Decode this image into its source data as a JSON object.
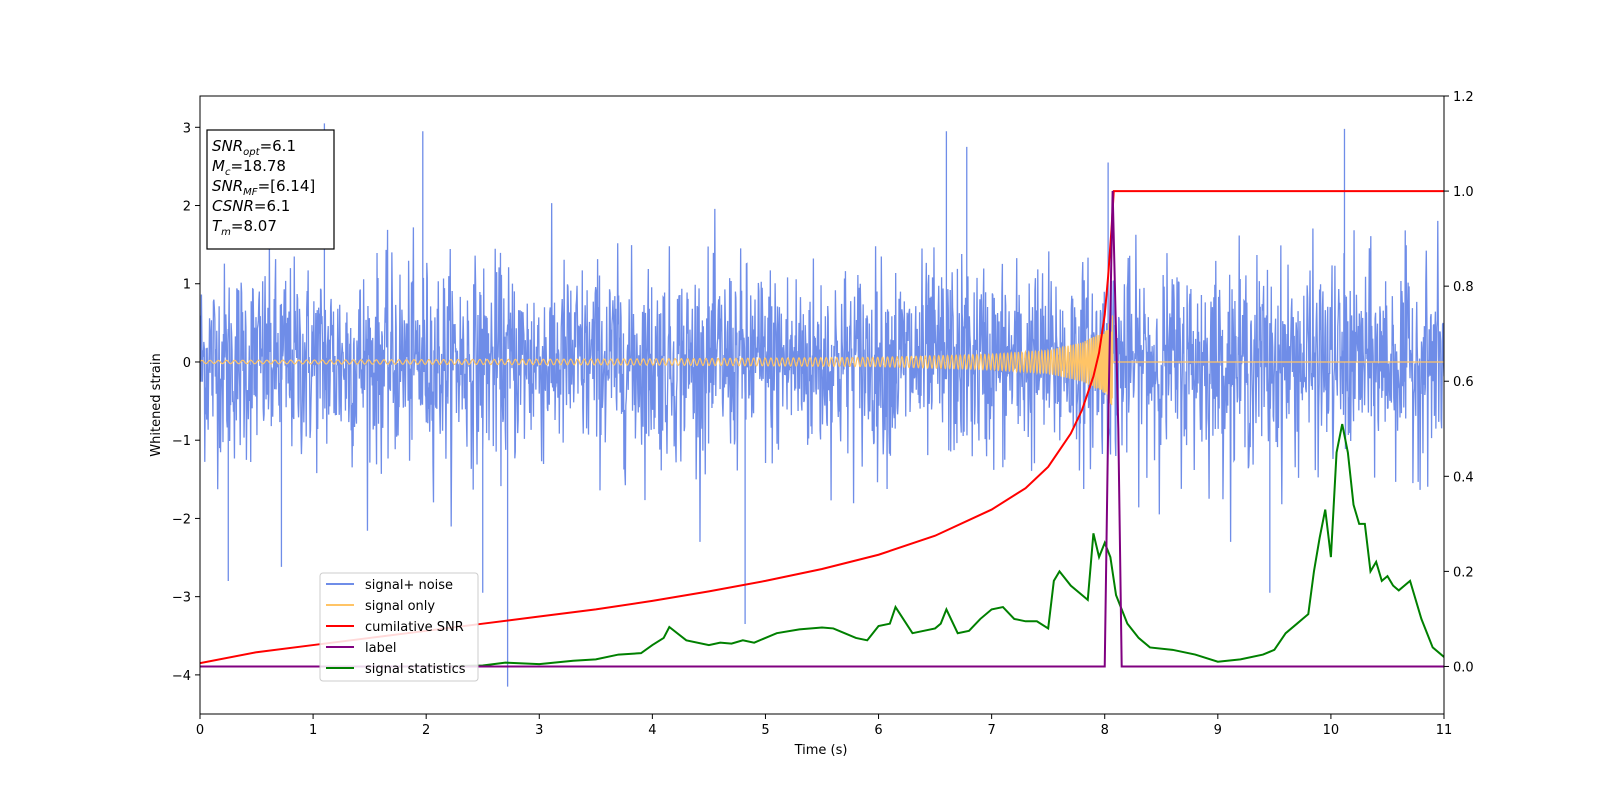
{
  "chart_data": {
    "type": "line",
    "title": "",
    "xlabel": "Time (s)",
    "ylabel": "Whitened strain",
    "xlim": [
      0,
      11
    ],
    "ylim_left": [
      -4.5,
      3.4
    ],
    "ylim_right": [
      -0.1,
      1.2
    ],
    "x_ticks": [
      0,
      1,
      2,
      3,
      4,
      5,
      6,
      7,
      8,
      9,
      10,
      11
    ],
    "y_ticks_left": [
      -4,
      -3,
      -2,
      -1,
      0,
      1,
      2,
      3
    ],
    "y_ticks_right": [
      0.0,
      0.2,
      0.4,
      0.6,
      0.8,
      1.0,
      1.2
    ],
    "x_tick_labels": [
      "0",
      "1",
      "2",
      "3",
      "4",
      "5",
      "6",
      "7",
      "8",
      "9",
      "10",
      "11"
    ],
    "y_tick_labels_left": [
      "−4",
      "−3",
      "−2",
      "−1",
      "0",
      "1",
      "2",
      "3"
    ],
    "y_tick_labels_right": [
      "0.0",
      "0.2",
      "0.4",
      "0.6",
      "0.8",
      "1.0",
      "1.2"
    ],
    "grid": false,
    "legend_position": "lower-left",
    "merger_time": 8.07,
    "colors": {
      "noise": "#6f8de8",
      "signal": "#ffc466",
      "csnr": "#ff0000",
      "label": "#800080",
      "stats": "#008000"
    },
    "series": [
      {
        "name": "signal+ noise",
        "axis": "left",
        "description_peaks": [
          [
            1.1,
            3.05
          ],
          [
            1.97,
            2.95
          ],
          [
            6.6,
            2.95
          ],
          [
            6.78,
            2.75
          ],
          [
            10.12,
            2.98
          ],
          [
            8.03,
            2.55
          ],
          [
            2.72,
            -4.15
          ],
          [
            0.25,
            -2.8
          ],
          [
            4.82,
            -3.35
          ],
          [
            9.46,
            -2.95
          ],
          [
            2.5,
            -2.95
          ],
          [
            0.72,
            -2.62
          ]
        ]
      },
      {
        "name": "signal only",
        "axis": "left",
        "envelope": [
          [
            0,
            0.02
          ],
          [
            4,
            0.04
          ],
          [
            6,
            0.06
          ],
          [
            7,
            0.1
          ],
          [
            7.5,
            0.15
          ],
          [
            7.8,
            0.25
          ],
          [
            8.0,
            0.4
          ],
          [
            8.07,
            0.6
          ],
          [
            8.1,
            0.0
          ],
          [
            11,
            0.0
          ]
        ]
      },
      {
        "name": "cumilative SNR",
        "axis": "right",
        "x": [
          0,
          0.5,
          1,
          1.5,
          2,
          2.5,
          3,
          3.5,
          4,
          4.5,
          5,
          5.5,
          6,
          6.5,
          7,
          7.3,
          7.5,
          7.7,
          7.8,
          7.9,
          7.95,
          8.0,
          8.03,
          8.06,
          8.08,
          8.1,
          8.5,
          9,
          10,
          11
        ],
        "y": [
          0.007,
          0.03,
          0.045,
          0.06,
          0.075,
          0.09,
          0.105,
          0.12,
          0.138,
          0.158,
          0.18,
          0.205,
          0.235,
          0.275,
          0.33,
          0.375,
          0.42,
          0.49,
          0.54,
          0.61,
          0.66,
          0.74,
          0.82,
          0.92,
          1.0,
          1.0,
          1.0,
          1.0,
          1.0,
          1.0
        ]
      },
      {
        "name": "label",
        "axis": "right",
        "x": [
          0,
          8.0,
          8.03,
          8.07,
          8.12,
          8.15,
          11
        ],
        "y": [
          0,
          0,
          0.5,
          1.0,
          0.5,
          0,
          0
        ]
      },
      {
        "name": "signal statistics",
        "axis": "right",
        "x": [
          0,
          1,
          2,
          2.5,
          2.7,
          3,
          3.3,
          3.5,
          3.7,
          3.9,
          4.0,
          4.1,
          4.15,
          4.3,
          4.5,
          4.6,
          4.7,
          4.8,
          4.9,
          5.0,
          5.1,
          5.3,
          5.5,
          5.6,
          5.7,
          5.8,
          5.9,
          6.0,
          6.1,
          6.15,
          6.3,
          6.5,
          6.55,
          6.6,
          6.7,
          6.8,
          6.9,
          7.0,
          7.1,
          7.2,
          7.3,
          7.4,
          7.5,
          7.55,
          7.6,
          7.7,
          7.8,
          7.85,
          7.9,
          7.95,
          8.0,
          8.05,
          8.1,
          8.2,
          8.3,
          8.4,
          8.6,
          8.8,
          9.0,
          9.2,
          9.4,
          9.5,
          9.6,
          9.7,
          9.75,
          9.8,
          9.85,
          9.9,
          9.95,
          10.0,
          10.05,
          10.1,
          10.15,
          10.2,
          10.25,
          10.3,
          10.35,
          10.4,
          10.45,
          10.5,
          10.55,
          10.6,
          10.7,
          10.8,
          10.9,
          11.0
        ],
        "y": [
          0,
          0,
          0,
          0.002,
          0.008,
          0.005,
          0.012,
          0.015,
          0.025,
          0.028,
          0.045,
          0.06,
          0.083,
          0.055,
          0.045,
          0.05,
          0.048,
          0.055,
          0.05,
          0.06,
          0.07,
          0.078,
          0.082,
          0.08,
          0.07,
          0.06,
          0.055,
          0.085,
          0.09,
          0.125,
          0.07,
          0.08,
          0.09,
          0.12,
          0.07,
          0.075,
          0.1,
          0.12,
          0.125,
          0.1,
          0.095,
          0.095,
          0.08,
          0.18,
          0.2,
          0.17,
          0.15,
          0.14,
          0.28,
          0.23,
          0.26,
          0.23,
          0.15,
          0.09,
          0.06,
          0.04,
          0.035,
          0.025,
          0.01,
          0.015,
          0.025,
          0.035,
          0.07,
          0.09,
          0.1,
          0.11,
          0.2,
          0.27,
          0.33,
          0.23,
          0.45,
          0.51,
          0.45,
          0.34,
          0.3,
          0.3,
          0.2,
          0.22,
          0.18,
          0.19,
          0.17,
          0.16,
          0.18,
          0.1,
          0.04,
          0.02
        ]
      }
    ],
    "annotation_box": {
      "position": "top-left",
      "lines": [
        {
          "base": "SNR",
          "sub": "opt",
          "value": "=6.1"
        },
        {
          "base": "M",
          "sub": "c",
          "value": "=18.78"
        },
        {
          "base": "SNR",
          "sub": "MF",
          "value": "=[6.14]"
        },
        {
          "base": "CSNR",
          "sub": "",
          "value": "=6.1"
        },
        {
          "base": "T",
          "sub": "m",
          "value": "=8.07"
        }
      ]
    }
  }
}
